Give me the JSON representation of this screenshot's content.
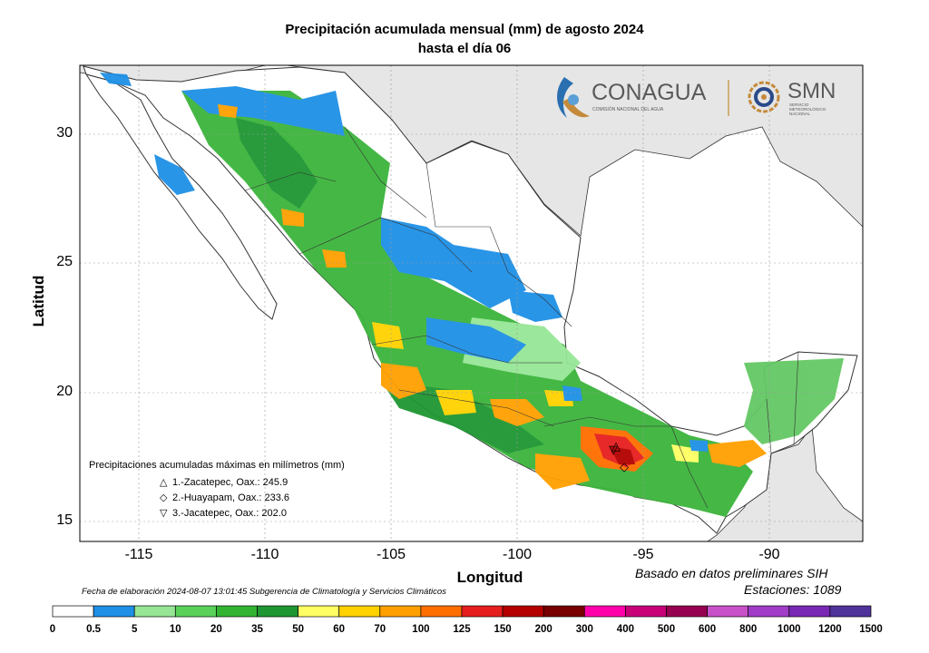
{
  "title": {
    "line1": "Precipitación acumulada mensual (mm) de agosto 2024",
    "line2": "hasta el día 06"
  },
  "axes": {
    "xlabel": "Longitud",
    "ylabel": "Latitud",
    "xticks": [
      "-115",
      "-110",
      "-105",
      "-100",
      "-95",
      "-90"
    ],
    "yticks": [
      "30",
      "25",
      "20",
      "15"
    ],
    "lon_range": [
      -117.5,
      -86.5
    ],
    "lat_range": [
      14.5,
      32.7
    ],
    "grid": true
  },
  "logos": {
    "conagua_name": "CONAGUA",
    "conagua_sub": "COMISIÓN NACIONAL DEL AGUA",
    "smn_name": "SMN",
    "smn_sub": [
      "SERVICIO",
      "METEOROLÓGICO",
      "NACIONAL"
    ],
    "primary_color": "#5a5a5a",
    "accent_color": "#c48a3a"
  },
  "legend": {
    "title": "Precipitaciones acumuladas máximas en milímetros (mm)",
    "items": [
      {
        "symbol": "△",
        "text": "1.-Zacatepec, Oax.: 245.9",
        "lon": -96.0,
        "lat": 17.1
      },
      {
        "symbol": "◇",
        "text": "2.-Huayapam, Oax.: 233.6",
        "lon": -95.9,
        "lat": 16.95
      },
      {
        "symbol": "▽",
        "text": "3.-Jacatepec, Oax.: 202.0",
        "lon": -96.2,
        "lat": 17.6
      }
    ]
  },
  "footer": {
    "fecha": "Fecha de elaboración 2024-08-07 13:01:45 Subgerencia de Climatología y Servicios Climáticos",
    "basado": "Basado en datos preliminares SIH",
    "estaciones": "Estaciones:  1089"
  },
  "colorbar": {
    "labels": [
      "0",
      "0.5",
      "5",
      "10",
      "20",
      "35",
      "50",
      "60",
      "70",
      "100",
      "125",
      "150",
      "200",
      "300",
      "400",
      "500",
      "600",
      "800",
      "1000",
      "1200",
      "1500"
    ],
    "colors": [
      "#ffffff",
      "#1e90e6",
      "#96e696",
      "#5ad25a",
      "#32b432",
      "#1e9632",
      "#ffff64",
      "#ffd200",
      "#ffa000",
      "#ff6e00",
      "#e61e1e",
      "#b40000",
      "#780000",
      "#ff00aa",
      "#c80078",
      "#960050",
      "#c850c8",
      "#a03cc8",
      "#7828b4",
      "#50329b"
    ]
  },
  "map": {
    "land_color": "#ffffff",
    "outside_color": "#e6e6e6",
    "ocean_color": "#ffffff"
  }
}
